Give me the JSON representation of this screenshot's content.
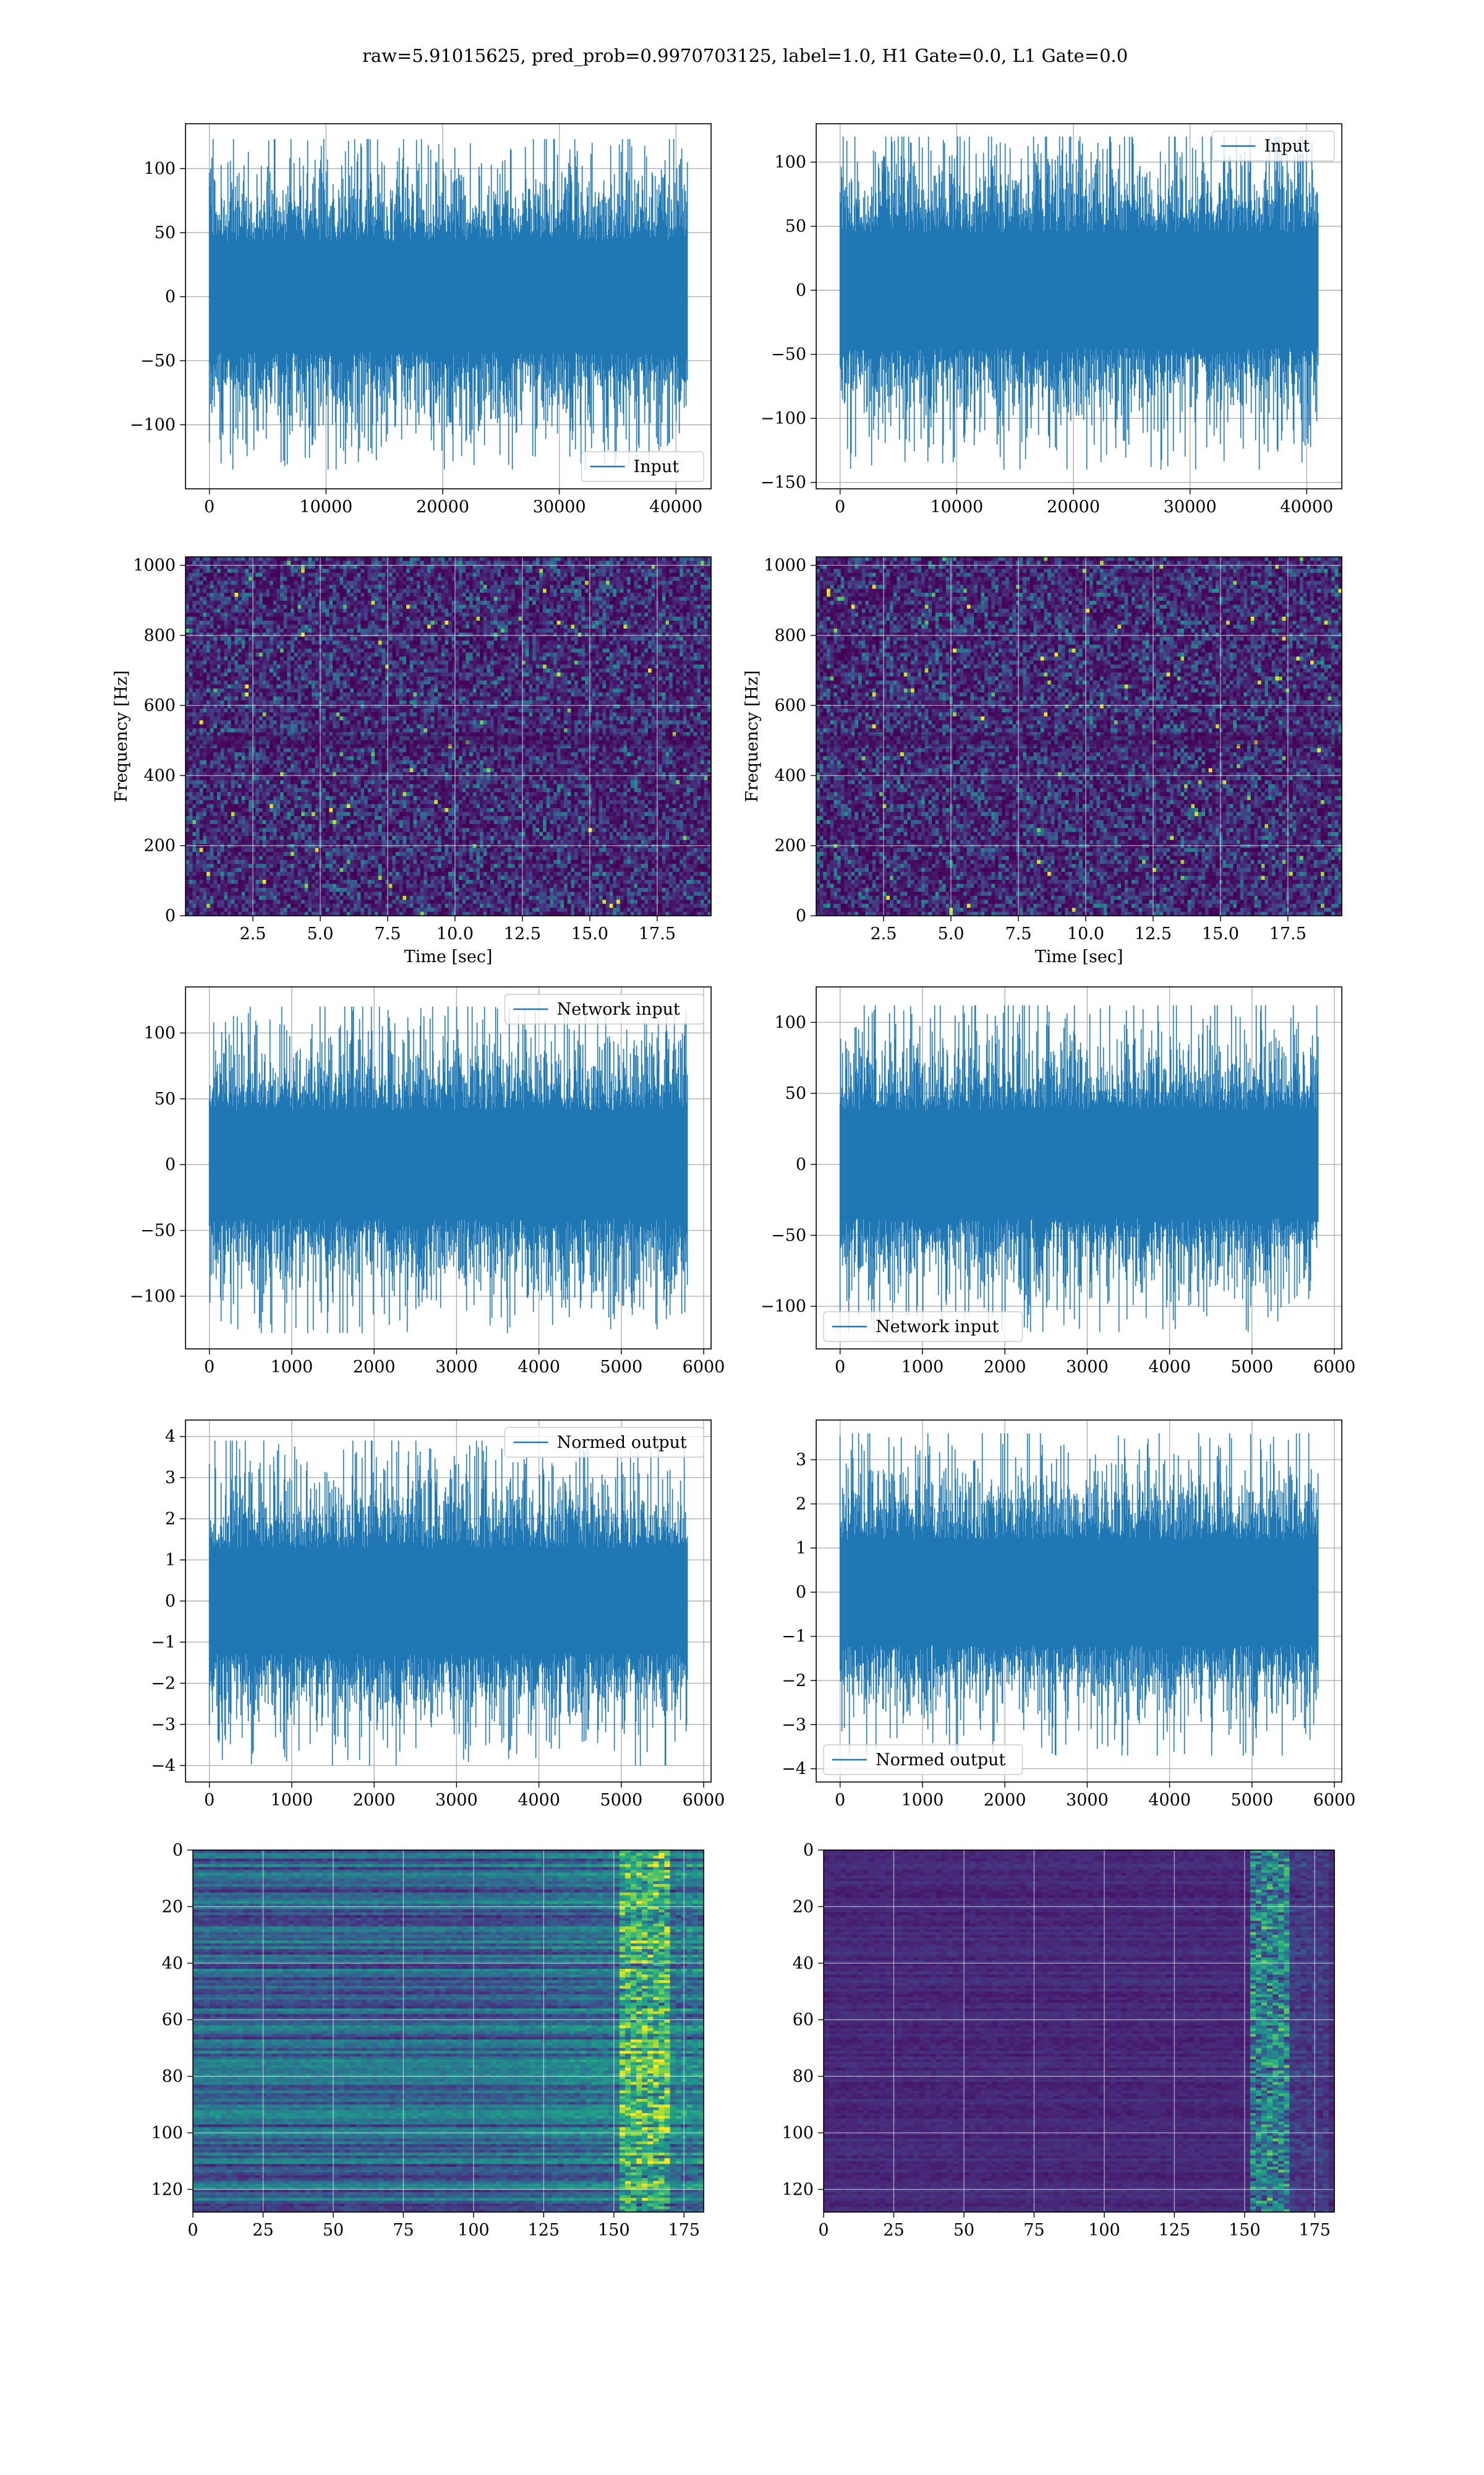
{
  "figure": {
    "title": "raw=5.91015625, pred_prob=0.9970703125, label=1.0, H1 Gate=0.0, L1 Gate=0.0"
  },
  "colors": {
    "line": "#1f77b4",
    "grid": "#b0b0b0",
    "viridis_low": "#440154",
    "viridis_high": "#fde725"
  },
  "chart_data": [
    {
      "id": "input_h1",
      "type": "line",
      "series": [
        {
          "name": "Input",
          "n_points": 40960,
          "amplitude_envelope": [
            -135,
            123
          ]
        }
      ],
      "xlim": [
        -2048,
        43008
      ],
      "ylim": [
        -150,
        135
      ],
      "xticks": [
        0,
        10000,
        20000,
        30000,
        40000
      ],
      "yticks": [
        -100,
        -50,
        0,
        50,
        100
      ],
      "legend_loc": "lower right",
      "grid": true,
      "xlabel": "",
      "ylabel": ""
    },
    {
      "id": "input_l1",
      "type": "line",
      "series": [
        {
          "name": "Input",
          "n_points": 40960,
          "amplitude_envelope": [
            -140,
            120
          ]
        }
      ],
      "xlim": [
        -2048,
        43008
      ],
      "ylim": [
        -155,
        130
      ],
      "xticks": [
        0,
        10000,
        20000,
        30000,
        40000
      ],
      "yticks": [
        -150,
        -100,
        -50,
        0,
        50,
        100
      ],
      "legend_loc": "upper right",
      "grid": true,
      "xlabel": "",
      "ylabel": ""
    },
    {
      "id": "spectrogram_h1",
      "type": "heatmap",
      "colormap": "viridis",
      "xlim": [
        0.0,
        19.5
      ],
      "ylim": [
        0,
        1024
      ],
      "xticks": [
        2.5,
        5.0,
        7.5,
        10.0,
        12.5,
        15.0,
        17.5
      ],
      "yticks": [
        0,
        200,
        400,
        600,
        800,
        1000
      ],
      "xlabel": "Time [sec]",
      "ylabel": "Frequency [Hz]",
      "grid": true
    },
    {
      "id": "spectrogram_l1",
      "type": "heatmap",
      "colormap": "viridis",
      "xlim": [
        0.0,
        19.5
      ],
      "ylim": [
        0,
        1024
      ],
      "xticks": [
        2.5,
        5.0,
        7.5,
        10.0,
        12.5,
        15.0,
        17.5
      ],
      "yticks": [
        0,
        200,
        400,
        600,
        800,
        1000
      ],
      "xlabel": "Time [sec]",
      "ylabel": "Frequency [Hz]",
      "grid": true
    },
    {
      "id": "network_input_h1",
      "type": "line",
      "series": [
        {
          "name": "Network input",
          "n_points": 5800,
          "amplitude_envelope": [
            -128,
            120
          ]
        }
      ],
      "xlim": [
        -290,
        6090
      ],
      "ylim": [
        -140,
        135
      ],
      "xticks": [
        0,
        1000,
        2000,
        3000,
        4000,
        5000,
        6000
      ],
      "yticks": [
        -100,
        -50,
        0,
        50,
        100
      ],
      "legend_loc": "upper right",
      "grid": true,
      "xlabel": "",
      "ylabel": ""
    },
    {
      "id": "network_input_l1",
      "type": "line",
      "series": [
        {
          "name": "Network input",
          "n_points": 5800,
          "amplitude_envelope": [
            -118,
            112
          ]
        }
      ],
      "xlim": [
        -290,
        6090
      ],
      "ylim": [
        -130,
        125
      ],
      "xticks": [
        0,
        1000,
        2000,
        3000,
        4000,
        5000,
        6000
      ],
      "yticks": [
        -100,
        -50,
        0,
        50,
        100
      ],
      "legend_loc": "lower left",
      "grid": true,
      "xlabel": "",
      "ylabel": ""
    },
    {
      "id": "normed_output_h1",
      "type": "line",
      "series": [
        {
          "name": "Normed output",
          "n_points": 5800,
          "amplitude_envelope": [
            -4.0,
            3.9
          ]
        }
      ],
      "xlim": [
        -290,
        6090
      ],
      "ylim": [
        -4.4,
        4.4
      ],
      "xticks": [
        0,
        1000,
        2000,
        3000,
        4000,
        5000,
        6000
      ],
      "yticks": [
        -4,
        -3,
        -2,
        -1,
        0,
        1,
        2,
        3,
        4
      ],
      "legend_loc": "upper right",
      "grid": true,
      "xlabel": "",
      "ylabel": ""
    },
    {
      "id": "normed_output_l1",
      "type": "line",
      "series": [
        {
          "name": "Normed output",
          "n_points": 5800,
          "amplitude_envelope": [
            -3.7,
            3.6
          ]
        }
      ],
      "xlim": [
        -290,
        6090
      ],
      "ylim": [
        -4.3,
        3.9
      ],
      "xticks": [
        0,
        1000,
        2000,
        3000,
        4000,
        5000,
        6000
      ],
      "yticks": [
        -4,
        -3,
        -2,
        -1,
        0,
        1,
        2,
        3
      ],
      "legend_loc": "lower left",
      "grid": true,
      "xlabel": "",
      "ylabel": ""
    },
    {
      "id": "feature_map_h1",
      "type": "heatmap",
      "colormap": "viridis",
      "rows": 128,
      "cols": 182,
      "xlim": [
        0,
        182
      ],
      "ylim": [
        128,
        0
      ],
      "xticks": [
        0,
        25,
        50,
        75,
        100,
        125,
        150,
        175
      ],
      "yticks": [
        0,
        20,
        40,
        60,
        80,
        100,
        120
      ],
      "grid": true,
      "xlabel": "",
      "ylabel": ""
    },
    {
      "id": "feature_map_l1",
      "type": "heatmap",
      "colormap": "viridis",
      "rows": 128,
      "cols": 182,
      "xlim": [
        0,
        182
      ],
      "ylim": [
        128,
        0
      ],
      "xticks": [
        0,
        25,
        50,
        75,
        100,
        125,
        150,
        175
      ],
      "yticks": [
        0,
        20,
        40,
        60,
        80,
        100,
        120
      ],
      "grid": true,
      "xlabel": "",
      "ylabel": ""
    }
  ]
}
